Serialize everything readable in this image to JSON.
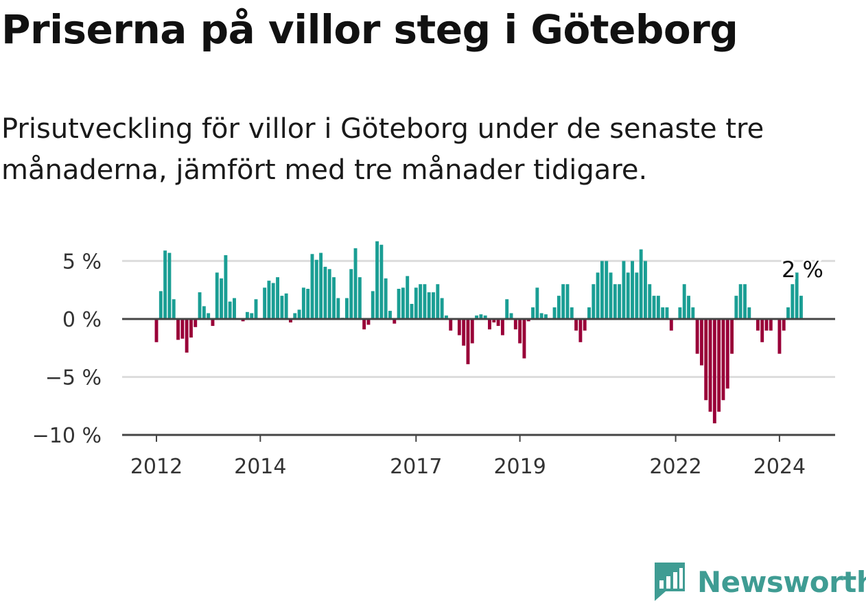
{
  "header": {
    "title": "Priserna på villor steg i Göteborg",
    "subtitle": "Prisutveckling för villor i Göteborg under de senaste tre månaderna, jämfört med tre månader tidigare."
  },
  "brand": {
    "name": "Newsworthy"
  },
  "colors": {
    "positive": "#1a9e94",
    "negative": "#990038",
    "logo": "#3f9c93",
    "grid": "#dddddd",
    "axis": "#444444"
  },
  "chart_data": {
    "type": "bar",
    "title": "Priserna på villor steg i Göteborg",
    "xlabel": "",
    "ylabel": "",
    "unit": "%",
    "ylim": [
      -10,
      6.8
    ],
    "yticks": [
      {
        "value": 5,
        "label": "5 %"
      },
      {
        "value": 0,
        "label": "0 %"
      },
      {
        "value": -5,
        "label": "−5 %"
      },
      {
        "value": -10,
        "label": "−10 %"
      }
    ],
    "xticks": [
      {
        "index": 0,
        "label": "2012"
      },
      {
        "index": 24,
        "label": "2014"
      },
      {
        "index": 60,
        "label": "2017"
      },
      {
        "index": 84,
        "label": "2019"
      },
      {
        "index": 120,
        "label": "2022"
      },
      {
        "index": 144,
        "label": "2024"
      }
    ],
    "annotation": {
      "index": 149,
      "label": "2 %"
    },
    "series": [
      {
        "name": "Prisutveckling",
        "start": "2012-01",
        "values": [
          -2,
          2.4,
          5.9,
          5.7,
          1.7,
          -1.8,
          -1.7,
          -2.9,
          -1.6,
          -0.7,
          2.3,
          1.1,
          0.5,
          -0.6,
          4,
          3.5,
          5.5,
          1.5,
          1.8,
          0,
          -0.2,
          0.6,
          0.5,
          1.7,
          0,
          2.7,
          3.3,
          3.1,
          3.6,
          2,
          2.2,
          -0.3,
          0.5,
          0.8,
          2.7,
          2.6,
          5.6,
          5.1,
          5.7,
          4.5,
          4.3,
          3.6,
          1.8,
          0.1,
          1.8,
          4.3,
          6.1,
          3.6,
          -0.9,
          -0.5,
          2.4,
          6.7,
          6.4,
          3.5,
          0.7,
          -0.4,
          2.6,
          2.7,
          3.7,
          1.3,
          2.7,
          3,
          3,
          2.3,
          2.3,
          3,
          1.8,
          0.3,
          -1,
          0,
          -1.4,
          -2.3,
          -3.9,
          -2.1,
          0.3,
          0.4,
          0.3,
          -0.9,
          -0.3,
          -0.6,
          -1.4,
          1.7,
          0.5,
          -0.9,
          -2.1,
          -3.4,
          -0.2,
          1,
          2.7,
          0.5,
          0.4,
          0,
          1,
          2,
          3,
          3,
          1,
          -1,
          -2,
          -1,
          1,
          3,
          4,
          5,
          5,
          4,
          3,
          3,
          5,
          4,
          5,
          4,
          6,
          5,
          3,
          2,
          2,
          1,
          1,
          -1,
          0,
          1,
          3,
          2,
          1,
          -3,
          -4,
          -7,
          -8,
          -9,
          -8,
          -7,
          -6,
          -3,
          2,
          3,
          3,
          1,
          0,
          -1,
          -2,
          -1,
          -1,
          0,
          -3,
          -1,
          1,
          3,
          4,
          2
        ]
      }
    ]
  }
}
